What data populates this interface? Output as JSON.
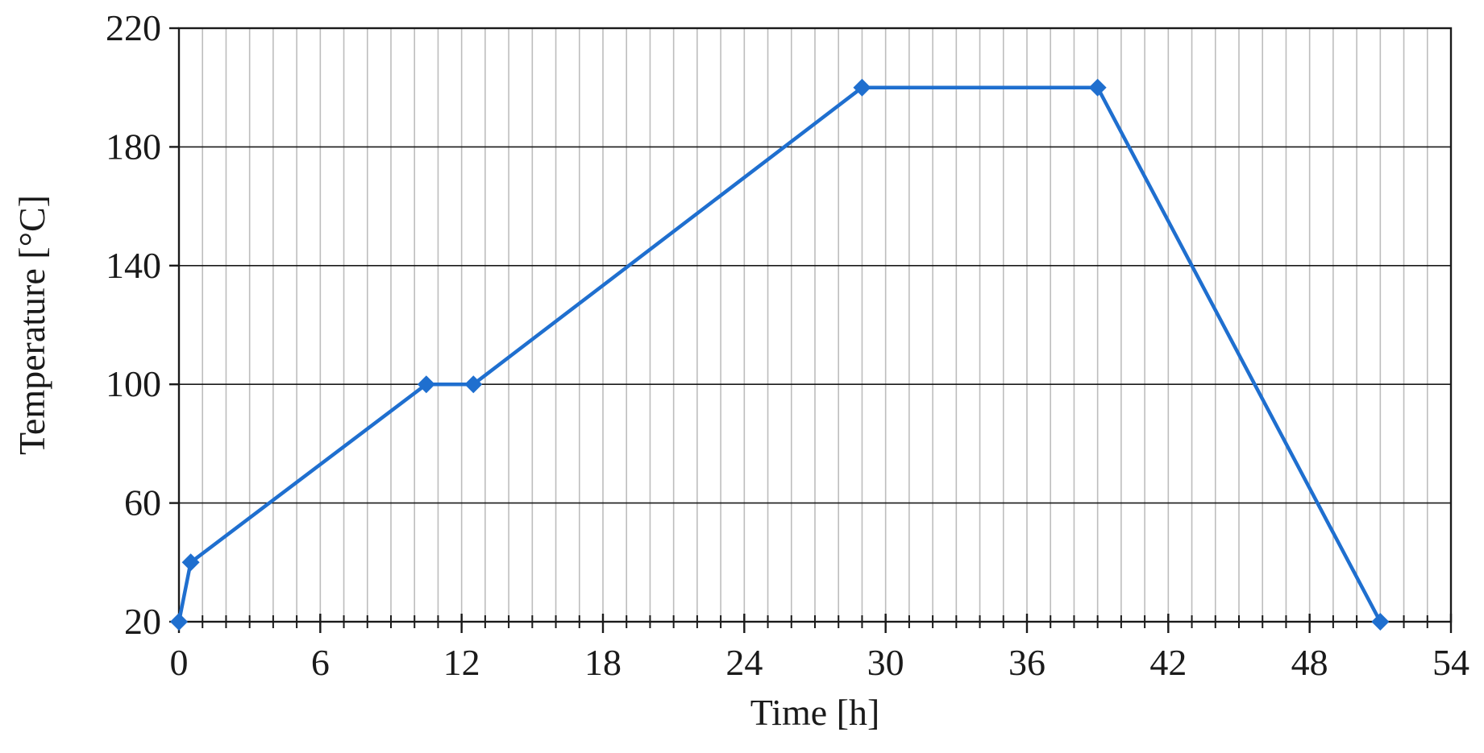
{
  "chart_data": {
    "type": "line",
    "title": "",
    "xlabel": "Time [h]",
    "ylabel": "Temperature [°C]",
    "xlim": [
      0,
      54
    ],
    "ylim": [
      20,
      220
    ],
    "x_ticks": [
      "0",
      "6",
      "12",
      "18",
      "24",
      "30",
      "36",
      "42",
      "48",
      "54"
    ],
    "y_ticks": [
      "20",
      "60",
      "100",
      "140",
      "180",
      "220"
    ],
    "x_minor_step": 1,
    "grid": {
      "major_horizontal": true,
      "minor_vertical": true
    },
    "series": [
      {
        "color": "#1f6fcf",
        "marker": "diamond",
        "x": [
          0,
          0.5,
          10.5,
          12.5,
          29,
          39,
          51
        ],
        "y": [
          20,
          40,
          100,
          100,
          200,
          200,
          20
        ]
      }
    ]
  }
}
